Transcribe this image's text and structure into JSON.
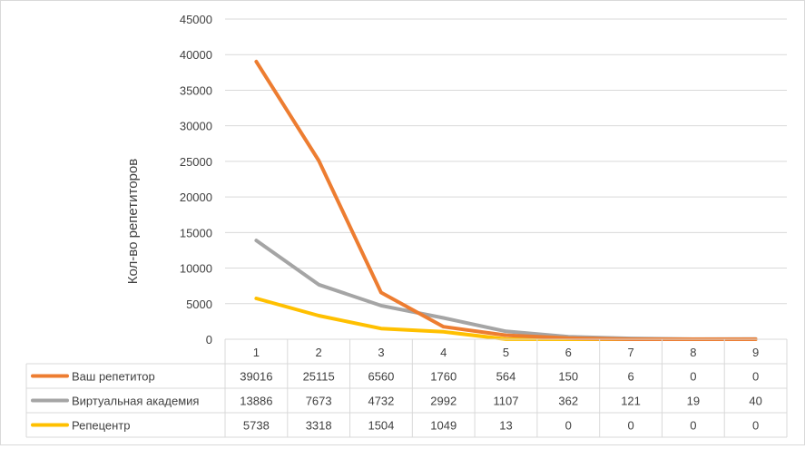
{
  "chart_data": {
    "type": "line",
    "categories": [
      "1",
      "2",
      "3",
      "4",
      "5",
      "6",
      "7",
      "8",
      "9"
    ],
    "ylabel": "Кол-во репетиторов",
    "ylim": [
      0,
      45000
    ],
    "yticks": [
      "0",
      "5000",
      "10000",
      "15000",
      "20000",
      "25000",
      "30000",
      "35000",
      "40000",
      "45000"
    ],
    "grid": true,
    "legend": "data-table",
    "series": [
      {
        "name": "Ваш репетитор",
        "color": "#ED7D31",
        "values": [
          39016,
          25115,
          6560,
          1760,
          564,
          150,
          6,
          0,
          0
        ],
        "labels": [
          "39016",
          "25115",
          "6560",
          "1760",
          "564",
          "150",
          "6",
          "0",
          "0"
        ]
      },
      {
        "name": "Виртуальная академия",
        "color": "#A5A5A5",
        "values": [
          13886,
          7673,
          4732,
          2992,
          1107,
          362,
          121,
          19,
          40
        ],
        "labels": [
          "13886",
          "7673",
          "4732",
          "2992",
          "1107",
          "362",
          "121",
          "19",
          "40"
        ]
      },
      {
        "name": "Репецентр",
        "color": "#FFC000",
        "values": [
          5738,
          3318,
          1504,
          1049,
          13,
          0,
          0,
          0,
          0
        ],
        "labels": [
          "5738",
          "3318",
          "1504",
          "1049",
          "13",
          "0",
          "0",
          "0",
          "0"
        ]
      }
    ]
  }
}
